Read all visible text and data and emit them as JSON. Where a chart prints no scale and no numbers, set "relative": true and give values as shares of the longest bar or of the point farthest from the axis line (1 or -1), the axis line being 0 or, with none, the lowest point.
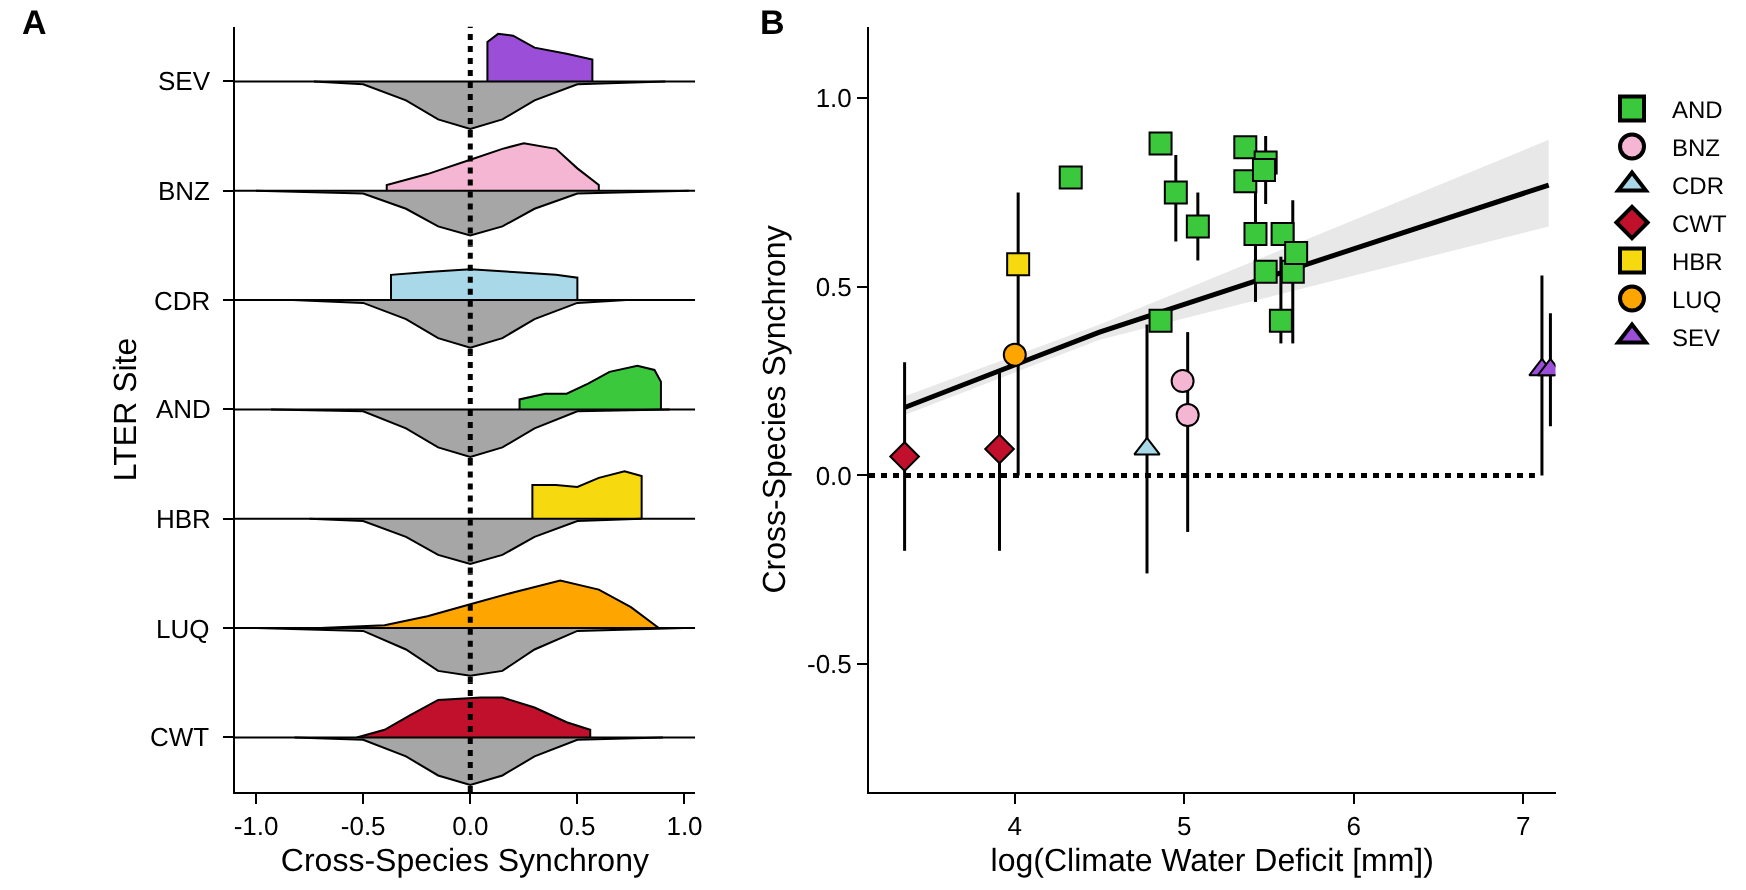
{
  "chart_data": [
    {
      "type": "area",
      "title": "SEV",
      "annotations": [
        "A"
      ],
      "relative": true,
      "xlim": [
        -1.1,
        1.05
      ],
      "tick_labels": false,
      "ref_lines": [
        {
          "axis": "x",
          "value": 0,
          "color": "#000000",
          "line_style": "dotted"
        }
      ],
      "series": [
        {
          "color": "#9b4fd9",
          "x": [
            0.08,
            0.08,
            0.13,
            0.2,
            0.3,
            0.45,
            0.57,
            0.57
          ],
          "values": [
            0,
            0.83,
            1.0,
            0.96,
            0.71,
            0.58,
            0.46,
            0
          ]
        },
        {
          "color": "#a6a6a6",
          "x": [
            -0.73,
            -0.5,
            -0.3,
            -0.15,
            0,
            0.15,
            0.3,
            0.5,
            0.91
          ],
          "values": [
            0,
            -0.06,
            -0.4,
            -0.8,
            -1.0,
            -0.8,
            -0.4,
            -0.06,
            0
          ]
        }
      ]
    },
    {
      "type": "area",
      "title": "BNZ",
      "relative": true,
      "xlim": [
        -1.1,
        1.05
      ],
      "tick_labels": false,
      "ref_lines": [
        {
          "axis": "x",
          "value": 0,
          "color": "#000000",
          "line_style": "dotted"
        }
      ],
      "series": [
        {
          "color": "#f4b6d2",
          "x": [
            -0.39,
            -0.39,
            -0.2,
            0,
            0.15,
            0.25,
            0.4,
            0.5,
            0.6,
            0.6
          ],
          "values": [
            0,
            0.12,
            0.35,
            0.65,
            0.88,
            1.0,
            0.88,
            0.47,
            0.12,
            0
          ]
        },
        {
          "color": "#a6a6a6",
          "x": [
            -1.0,
            -0.5,
            -0.3,
            -0.15,
            0,
            0.15,
            0.3,
            0.5,
            1.02
          ],
          "values": [
            0,
            -0.06,
            -0.38,
            -0.75,
            -0.94,
            -0.75,
            -0.38,
            -0.06,
            0
          ]
        }
      ]
    },
    {
      "type": "area",
      "title": "CDR",
      "relative": true,
      "xlim": [
        -1.1,
        1.05
      ],
      "tick_labels": false,
      "ref_lines": [
        {
          "axis": "x",
          "value": 0,
          "color": "#000000",
          "line_style": "dotted"
        }
      ],
      "series": [
        {
          "color": "#a9d8e8",
          "x": [
            -0.37,
            -0.37,
            -0.2,
            0,
            0.2,
            0.4,
            0.5,
            0.5
          ],
          "values": [
            0,
            0.53,
            0.59,
            0.65,
            0.59,
            0.53,
            0.47,
            0
          ]
        },
        {
          "color": "#a6a6a6",
          "x": [
            -0.83,
            -0.5,
            -0.3,
            -0.15,
            0,
            0.15,
            0.3,
            0.5,
            0.73
          ],
          "values": [
            0,
            -0.06,
            -0.4,
            -0.8,
            -1.0,
            -0.8,
            -0.4,
            -0.06,
            0
          ]
        }
      ]
    },
    {
      "type": "area",
      "title": "AND",
      "ylabel": "LTER Site",
      "relative": true,
      "xlim": [
        -1.1,
        1.05
      ],
      "tick_labels": false,
      "ref_lines": [
        {
          "axis": "x",
          "value": 0,
          "color": "#000000",
          "line_style": "dotted"
        }
      ],
      "series": [
        {
          "color": "#3cc83c",
          "x": [
            0.23,
            0.23,
            0.35,
            0.45,
            0.55,
            0.65,
            0.78,
            0.86,
            0.89,
            0.89
          ],
          "values": [
            0,
            0.21,
            0.33,
            0.33,
            0.54,
            0.79,
            0.92,
            0.83,
            0.58,
            0
          ]
        },
        {
          "color": "#a6a6a6",
          "x": [
            -0.93,
            -0.5,
            -0.3,
            -0.15,
            0,
            0.15,
            0.3,
            0.5,
            0.93
          ],
          "values": [
            0,
            -0.04,
            -0.4,
            -0.8,
            -1.0,
            -0.8,
            -0.4,
            -0.04,
            0
          ]
        }
      ]
    },
    {
      "type": "area",
      "title": "HBR",
      "relative": true,
      "xlim": [
        -1.1,
        1.05
      ],
      "tick_labels": false,
      "ref_lines": [
        {
          "axis": "x",
          "value": 0,
          "color": "#000000",
          "line_style": "dotted"
        }
      ],
      "series": [
        {
          "color": "#f7d90f",
          "x": [
            0.29,
            0.29,
            0.4,
            0.5,
            0.6,
            0.72,
            0.8,
            0.8
          ],
          "values": [
            0,
            0.71,
            0.71,
            0.67,
            0.86,
            1.0,
            0.9,
            0
          ]
        },
        {
          "color": "#a6a6a6",
          "x": [
            -0.75,
            -0.5,
            -0.3,
            -0.15,
            0,
            0.15,
            0.3,
            0.5,
            0.8
          ],
          "values": [
            0,
            -0.05,
            -0.38,
            -0.76,
            -0.95,
            -0.76,
            -0.38,
            -0.05,
            0
          ]
        }
      ]
    },
    {
      "type": "area",
      "title": "LUQ",
      "relative": true,
      "xlim": [
        -1.1,
        1.05
      ],
      "tick_labels": false,
      "ref_lines": [
        {
          "axis": "x",
          "value": 0,
          "color": "#000000",
          "line_style": "dotted"
        }
      ],
      "series": [
        {
          "color": "#ffa500",
          "x": [
            -1.0,
            -0.7,
            -0.4,
            -0.2,
            0,
            0.2,
            0.42,
            0.6,
            0.75,
            0.88,
            1.0
          ],
          "values": [
            0,
            0,
            0.06,
            0.25,
            0.5,
            0.75,
            1.0,
            0.81,
            0.44,
            0,
            0
          ]
        },
        {
          "color": "#a6a6a6",
          "x": [
            -1.0,
            -0.5,
            -0.3,
            -0.15,
            0,
            0.15,
            0.3,
            0.5,
            1.0
          ],
          "values": [
            0,
            -0.06,
            -0.45,
            -0.9,
            -1.0,
            -0.9,
            -0.45,
            -0.06,
            0
          ]
        }
      ]
    },
    {
      "type": "area",
      "title": "CWT",
      "xlabel": "Cross-Species Synchrony",
      "relative": true,
      "xlim": [
        -1.1,
        1.05
      ],
      "xticks": [
        {
          "value": -1,
          "label": "-1.0"
        },
        {
          "value": -0.5,
          "label": "-0.5"
        },
        {
          "value": 0,
          "label": "0.0"
        },
        {
          "value": 0.5,
          "label": "0.5"
        },
        {
          "value": 1,
          "label": "1.0"
        }
      ],
      "tick_labels": "x",
      "ref_lines": [
        {
          "axis": "x",
          "value": 0,
          "color": "#000000",
          "line_style": "dotted"
        }
      ],
      "series": [
        {
          "color": "#c0102c",
          "x": [
            -0.53,
            -0.4,
            -0.28,
            -0.15,
            0.05,
            0.15,
            0.3,
            0.45,
            0.56,
            0.56
          ],
          "values": [
            0,
            0.16,
            0.47,
            0.79,
            0.84,
            0.84,
            0.63,
            0.32,
            0.16,
            0
          ]
        },
        {
          "color": "#a6a6a6",
          "x": [
            -0.82,
            -0.5,
            -0.3,
            -0.15,
            0,
            0.15,
            0.3,
            0.5,
            0.9
          ],
          "values": [
            0,
            -0.05,
            -0.4,
            -0.8,
            -1.0,
            -0.8,
            -0.4,
            -0.05,
            0
          ]
        }
      ]
    },
    {
      "type": "scatter",
      "title": "B",
      "xlabel": "log(Climate Water Deficit [mm])",
      "ylabel": "Cross-Species Synchrony",
      "xlim": [
        3.14,
        7.19
      ],
      "xticks": [
        4,
        5,
        6,
        7
      ],
      "ylim": [
        -0.84,
        1.19
      ],
      "yticks": [
        {
          "value": -0.5,
          "label": "-0.5"
        },
        {
          "value": 0,
          "label": "0.0"
        },
        {
          "value": 0.5,
          "label": "0.5"
        },
        {
          "value": 1,
          "label": "1.0"
        }
      ],
      "legend": "right",
      "ref_lines": [
        {
          "axis": "y",
          "value": 0,
          "color": "#000000",
          "line_style": "dotted"
        }
      ],
      "series": [
        {
          "type": "line",
          "color": "#000000",
          "x": [
            3.35,
            4.5,
            7.15
          ],
          "values": [
            0.18,
            0.38,
            0.77
          ],
          "lower": [
            0.16,
            0.36,
            0.66
          ],
          "upper": [
            0.21,
            0.4,
            0.89
          ]
        },
        {
          "name": "AND",
          "color": "#3cc83c",
          "marker": "square",
          "x": [
            4.33,
            4.86,
            4.95,
            5.08,
            5.36,
            5.36,
            5.48,
            5.47,
            5.42,
            5.58,
            5.48,
            5.64,
            5.66,
            5.57,
            4.86
          ],
          "values": [
            0.79,
            0.88,
            0.75,
            0.66,
            0.87,
            0.78,
            0.83,
            0.81,
            0.64,
            0.64,
            0.54,
            0.54,
            0.59,
            0.41,
            0.41
          ],
          "errors": [
            null,
            null,
            [
              0.62,
              0.85
            ],
            [
              0.57,
              0.75
            ],
            null,
            null,
            [
              0.72,
              0.9
            ],
            null,
            [
              0.46,
              0.8
            ],
            null,
            null,
            [
              0.35,
              0.73
            ],
            null,
            [
              0.35,
              0.58
            ],
            null
          ]
        },
        {
          "name": "BNZ",
          "color": "#f4b6d2",
          "marker": "circle",
          "x": [
            4.99,
            5.02
          ],
          "values": [
            0.25,
            0.16
          ],
          "errors": [
            null,
            [
              -0.15,
              0.38
            ]
          ]
        },
        {
          "name": "CDR",
          "color": "#a9d8e8",
          "marker": "triangle",
          "x": [
            4.78
          ],
          "values": [
            0.07
          ],
          "errors": [
            [
              -0.26,
              0.4
            ]
          ]
        },
        {
          "name": "CWT",
          "color": "#c0102c",
          "marker": "diamond",
          "x": [
            3.35,
            3.91
          ],
          "values": [
            0.05,
            0.07
          ],
          "errors": [
            [
              -0.2,
              0.3
            ],
            [
              -0.2,
              0.28
            ]
          ]
        },
        {
          "name": "HBR",
          "color": "#f7d90f",
          "marker": "square",
          "x": [
            4.02
          ],
          "values": [
            0.56
          ],
          "errors": [
            [
              0.0,
              0.75
            ]
          ]
        },
        {
          "name": "LUQ",
          "color": "#ffa500",
          "marker": "circle",
          "x": [
            4.0
          ],
          "values": [
            0.32
          ]
        },
        {
          "name": "SEV",
          "color": "#9b4fd9",
          "marker": "triangle",
          "x": [
            7.11,
            7.16
          ],
          "values": [
            0.28,
            0.28
          ],
          "errors": [
            [
              0.0,
              0.53
            ],
            [
              0.13,
              0.43
            ]
          ]
        }
      ]
    }
  ]
}
